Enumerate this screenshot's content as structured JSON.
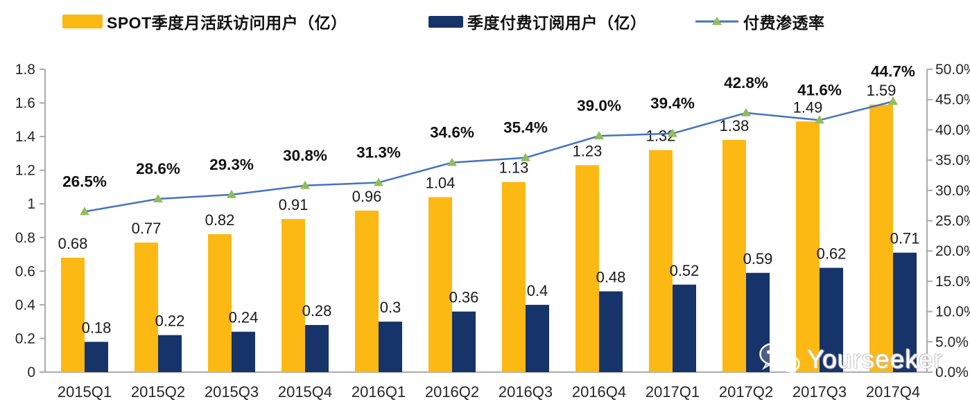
{
  "legend": {
    "items": [
      {
        "label": "SPOT季度月活跃访问用户（亿）",
        "swatch": "bar",
        "color": "#FCB813"
      },
      {
        "label": "季度付费订阅用户（亿）",
        "swatch": "bar",
        "color": "#16336A"
      },
      {
        "label": "付费渗透率",
        "swatch": "line-triangle",
        "color": "#4472C4",
        "marker_color": "#92BE58"
      }
    ]
  },
  "chart_data": {
    "type": "combo-bar-line",
    "title": "",
    "categories": [
      "2015Q1",
      "2015Q2",
      "2015Q3",
      "2015Q4",
      "2016Q1",
      "2016Q2",
      "2016Q3",
      "2016Q4",
      "2017Q1",
      "2017Q2",
      "2017Q3",
      "2017Q4"
    ],
    "series": [
      {
        "name": "SPOT季度月活跃访问用户（亿）",
        "type": "bar",
        "axis": "left",
        "color": "#FCB813",
        "values": [
          0.68,
          0.77,
          0.82,
          0.91,
          0.96,
          1.04,
          1.13,
          1.23,
          1.32,
          1.38,
          1.49,
          1.59
        ],
        "labels": [
          "0.68",
          "0.77",
          "0.82",
          "0.91",
          "0.96",
          "1.04",
          "1.13",
          "1.23",
          "1.32",
          "1.38",
          "1.49",
          "1.59"
        ]
      },
      {
        "name": "季度付费订阅用户（亿）",
        "type": "bar",
        "axis": "left",
        "color": "#16336A",
        "values": [
          0.18,
          0.22,
          0.24,
          0.28,
          0.3,
          0.36,
          0.4,
          0.48,
          0.52,
          0.59,
          0.62,
          0.71
        ],
        "labels": [
          "0.18",
          "0.22",
          "0.24",
          "0.28",
          "0.3",
          "0.36",
          "0.4",
          "0.48",
          "0.52",
          "0.59",
          "0.62",
          "0.71"
        ]
      },
      {
        "name": "付费渗透率",
        "type": "line",
        "axis": "right",
        "color": "#4472C4",
        "marker": "triangle",
        "marker_color": "#92BE58",
        "values": [
          26.5,
          28.6,
          29.3,
          30.8,
          31.3,
          34.6,
          35.4,
          39.0,
          39.4,
          42.8,
          41.6,
          44.7
        ],
        "labels": [
          "26.5%",
          "28.6%",
          "29.3%",
          "30.8%",
          "31.3%",
          "34.6%",
          "35.4%",
          "39.0%",
          "39.4%",
          "42.8%",
          "41.6%",
          "44.7%"
        ]
      }
    ],
    "left_axis": {
      "min": 0,
      "max": 1.8,
      "step": 0.2,
      "tick_labels": [
        "0",
        "0.2",
        "0.4",
        "0.6",
        "0.8",
        "1",
        "1.2",
        "1.4",
        "1.6",
        "1.8"
      ]
    },
    "right_axis": {
      "min": 0,
      "max": 50,
      "step": 5,
      "tick_labels": [
        "0.0%",
        "5.0%",
        "10.0%",
        "15.0%",
        "20.0%",
        "25.0%",
        "30.0%",
        "35.0%",
        "40.0%",
        "45.0%",
        "50.0%"
      ]
    },
    "grid": false,
    "legend_position": "top"
  },
  "watermark": {
    "text": "Yourseeker",
    "icon": "wechat-icon"
  }
}
